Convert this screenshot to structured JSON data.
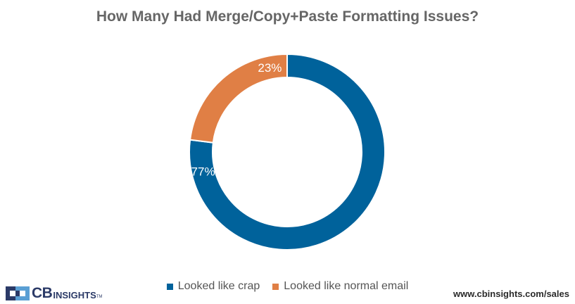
{
  "chart_data": {
    "type": "pie",
    "style": "donut",
    "title": "How Many Had Merge/Copy+Paste Formatting Issues?",
    "slices": [
      {
        "name": "Looked like crap",
        "value": 77,
        "label": "77%",
        "color": "#00629b"
      },
      {
        "name": "Looked like normal email",
        "value": 23,
        "label": "23%",
        "color": "#e07f45"
      }
    ],
    "legend_position": "bottom-center"
  },
  "footer": {
    "logo_text_cb": "CB",
    "logo_text_insights": "INSIGHTS",
    "logo_tm": "TM",
    "website": "www.cbinsights.com/sales"
  }
}
